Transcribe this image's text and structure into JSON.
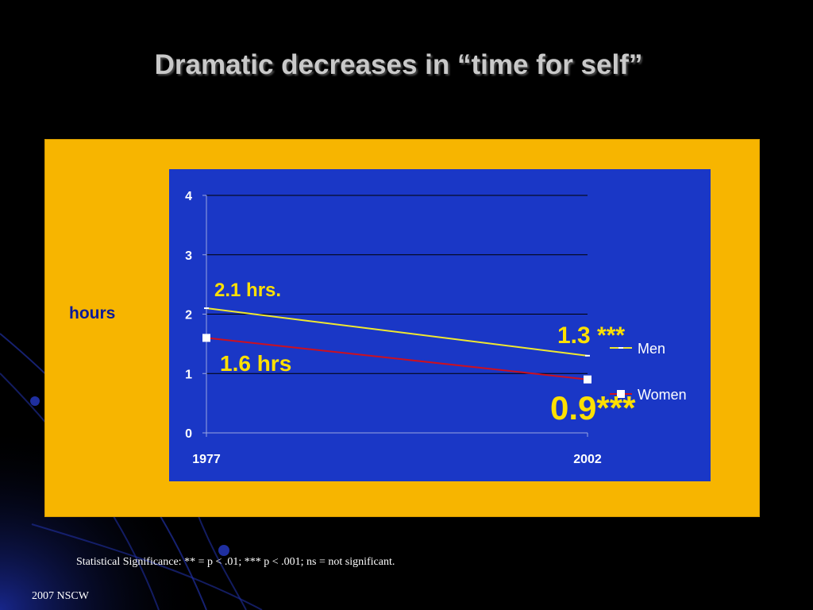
{
  "slide": {
    "title": "Dramatic decreases in “time for self”",
    "footnote": "Statistical Significance: ** = p < .01; *** p < .001; ns = not significant.",
    "corner": "2007 NSCW",
    "y_axis_label": "hours"
  },
  "colors": {
    "background": "#000000",
    "panel": "#f7b500",
    "plot_area": "#1a37c6",
    "men": "#f0e830",
    "women": "#cc1020",
    "annotation": "#ffe000",
    "axis_label": "#0a1a9a"
  },
  "chart_data": {
    "type": "line",
    "x": [
      "1977",
      "2002"
    ],
    "ylim": [
      0,
      4
    ],
    "yticks": [
      "0",
      "1",
      "2",
      "3",
      "4"
    ],
    "ylabel": "hours",
    "grid": true,
    "legend": "right",
    "series": [
      {
        "name": "Men",
        "values": [
          2.1,
          1.3
        ],
        "color": "#f0e830",
        "marker": "dash"
      },
      {
        "name": "Women",
        "values": [
          1.6,
          0.9
        ],
        "color": "#cc1020",
        "marker": "square"
      }
    ],
    "annotations": [
      {
        "text": "2.1 hrs.",
        "series": "Men",
        "point": 0
      },
      {
        "text": "1.3 ***",
        "series": "Men",
        "point": 1
      },
      {
        "text": "1.6 hrs",
        "series": "Women",
        "point": 0
      },
      {
        "text": "0.9***",
        "series": "Women",
        "point": 1
      }
    ]
  }
}
